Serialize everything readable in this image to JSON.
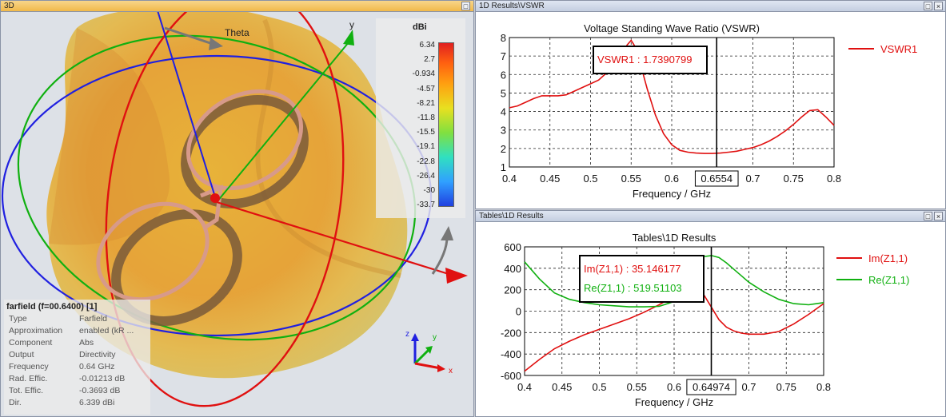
{
  "view3d": {
    "title": "3D",
    "theta_label": "Theta",
    "axis_y_label": "y",
    "unit": "dBi",
    "scale_values": [
      "6.34",
      "2.7",
      "-0.934",
      "-4.57",
      "-8.21",
      "-11.8",
      "-15.5",
      "-19.1",
      "-22.8",
      "-26.4",
      "-30",
      "-33.7"
    ],
    "triad": {
      "z": "z",
      "y": "y",
      "x": "x"
    },
    "info": {
      "header": "farfield (f=00.6400) [1]",
      "rows": [
        {
          "key": "Type",
          "value": "Farfield"
        },
        {
          "key": "Approximation",
          "value": "enabled (kR ..."
        },
        {
          "key": "Component",
          "value": "Abs"
        },
        {
          "key": "Output",
          "value": "Directivity"
        },
        {
          "key": "Frequency",
          "value": "0.64 GHz"
        },
        {
          "key": "Rad. Effic.",
          "value": "-0.01213 dB"
        },
        {
          "key": "Tot. Effic.",
          "value": "-0.3693 dB"
        },
        {
          "key": "Dir.",
          "value": "6.339 dBi"
        }
      ]
    }
  },
  "vswr_pane": {
    "title": "1D Results\\VSWR"
  },
  "tables_pane": {
    "title": "Tables\\1D Results"
  },
  "chart_data": [
    {
      "type": "line",
      "title": "Voltage Standing Wave Ratio (VSWR)",
      "xlabel": "Frequency / GHz",
      "ylabel": "",
      "xlim": [
        0.4,
        0.8
      ],
      "ylim": [
        1,
        8
      ],
      "xticks": [
        "0.4",
        "0.45",
        "0.5",
        "0.55",
        "0.6",
        "0.6554",
        "0.7",
        "0.75",
        "0.8"
      ],
      "yticks": [
        "1",
        "2",
        "3",
        "4",
        "5",
        "6",
        "7",
        "8"
      ],
      "marker_x": 0.6554,
      "marker_label": "0.6554",
      "annotation": "VSWR1 : 1.7390799",
      "legend": "right",
      "grid": true,
      "series": [
        {
          "name": "VSWR1",
          "color": "#e01010",
          "x": [
            0.4,
            0.41,
            0.42,
            0.43,
            0.44,
            0.45,
            0.46,
            0.47,
            0.48,
            0.49,
            0.5,
            0.51,
            0.52,
            0.53,
            0.54,
            0.545,
            0.55,
            0.555,
            0.56,
            0.57,
            0.58,
            0.59,
            0.6,
            0.61,
            0.62,
            0.63,
            0.64,
            0.65,
            0.66,
            0.67,
            0.68,
            0.69,
            0.7,
            0.71,
            0.72,
            0.73,
            0.74,
            0.75,
            0.76,
            0.77,
            0.78,
            0.79,
            0.8
          ],
          "y": [
            4.2,
            4.3,
            4.5,
            4.7,
            4.85,
            4.85,
            4.85,
            4.9,
            5.1,
            5.3,
            5.5,
            5.7,
            6.1,
            6.6,
            7.2,
            7.6,
            7.85,
            7.5,
            6.8,
            5.2,
            3.8,
            2.8,
            2.2,
            1.9,
            1.8,
            1.75,
            1.73,
            1.73,
            1.75,
            1.8,
            1.85,
            1.95,
            2.05,
            2.2,
            2.4,
            2.65,
            2.95,
            3.3,
            3.7,
            4.05,
            4.1,
            3.7,
            3.25
          ]
        }
      ]
    },
    {
      "type": "line",
      "title": "Tables\\1D Results",
      "xlabel": "Frequency / GHz",
      "ylabel": "",
      "xlim": [
        0.4,
        0.8
      ],
      "ylim": [
        -600,
        600
      ],
      "xticks": [
        "0.4",
        "0.45",
        "0.5",
        "0.55",
        "0.6",
        "0.64974",
        "0.7",
        "0.75",
        "0.8"
      ],
      "yticks": [
        "600",
        "400",
        "200",
        "0",
        "-200",
        "-400",
        "-600"
      ],
      "marker_x": 0.64974,
      "marker_label": "0.64974",
      "annotations": [
        "Im(Z1,1) : 35.146177",
        "Re(Z1,1) : 519.51103"
      ],
      "legend": "right",
      "grid": true,
      "series": [
        {
          "name": "Im(Z1,1)",
          "color": "#e01010",
          "x": [
            0.4,
            0.42,
            0.44,
            0.46,
            0.48,
            0.5,
            0.52,
            0.54,
            0.56,
            0.58,
            0.6,
            0.61,
            0.62,
            0.63,
            0.64,
            0.65,
            0.66,
            0.67,
            0.68,
            0.69,
            0.7,
            0.72,
            0.74,
            0.76,
            0.78,
            0.8
          ],
          "y": [
            -560,
            -450,
            -350,
            -280,
            -220,
            -170,
            -120,
            -70,
            -10,
            60,
            140,
            190,
            230,
            250,
            150,
            35,
            -80,
            -150,
            -185,
            -205,
            -215,
            -215,
            -190,
            -120,
            -30,
            70
          ]
        },
        {
          "name": "Re(Z1,1)",
          "color": "#10b010",
          "x": [
            0.4,
            0.42,
            0.44,
            0.46,
            0.48,
            0.5,
            0.52,
            0.54,
            0.56,
            0.58,
            0.6,
            0.61,
            0.62,
            0.63,
            0.64,
            0.65,
            0.66,
            0.67,
            0.68,
            0.69,
            0.7,
            0.72,
            0.74,
            0.76,
            0.78,
            0.8
          ],
          "y": [
            460,
            300,
            170,
            110,
            80,
            60,
            50,
            40,
            40,
            45,
            90,
            160,
            280,
            420,
            510,
            519,
            500,
            450,
            390,
            330,
            270,
            180,
            110,
            70,
            60,
            80
          ]
        }
      ]
    }
  ],
  "colors": {
    "accent_title": "#f1b94a",
    "red": "#e01010",
    "green": "#10b010"
  }
}
